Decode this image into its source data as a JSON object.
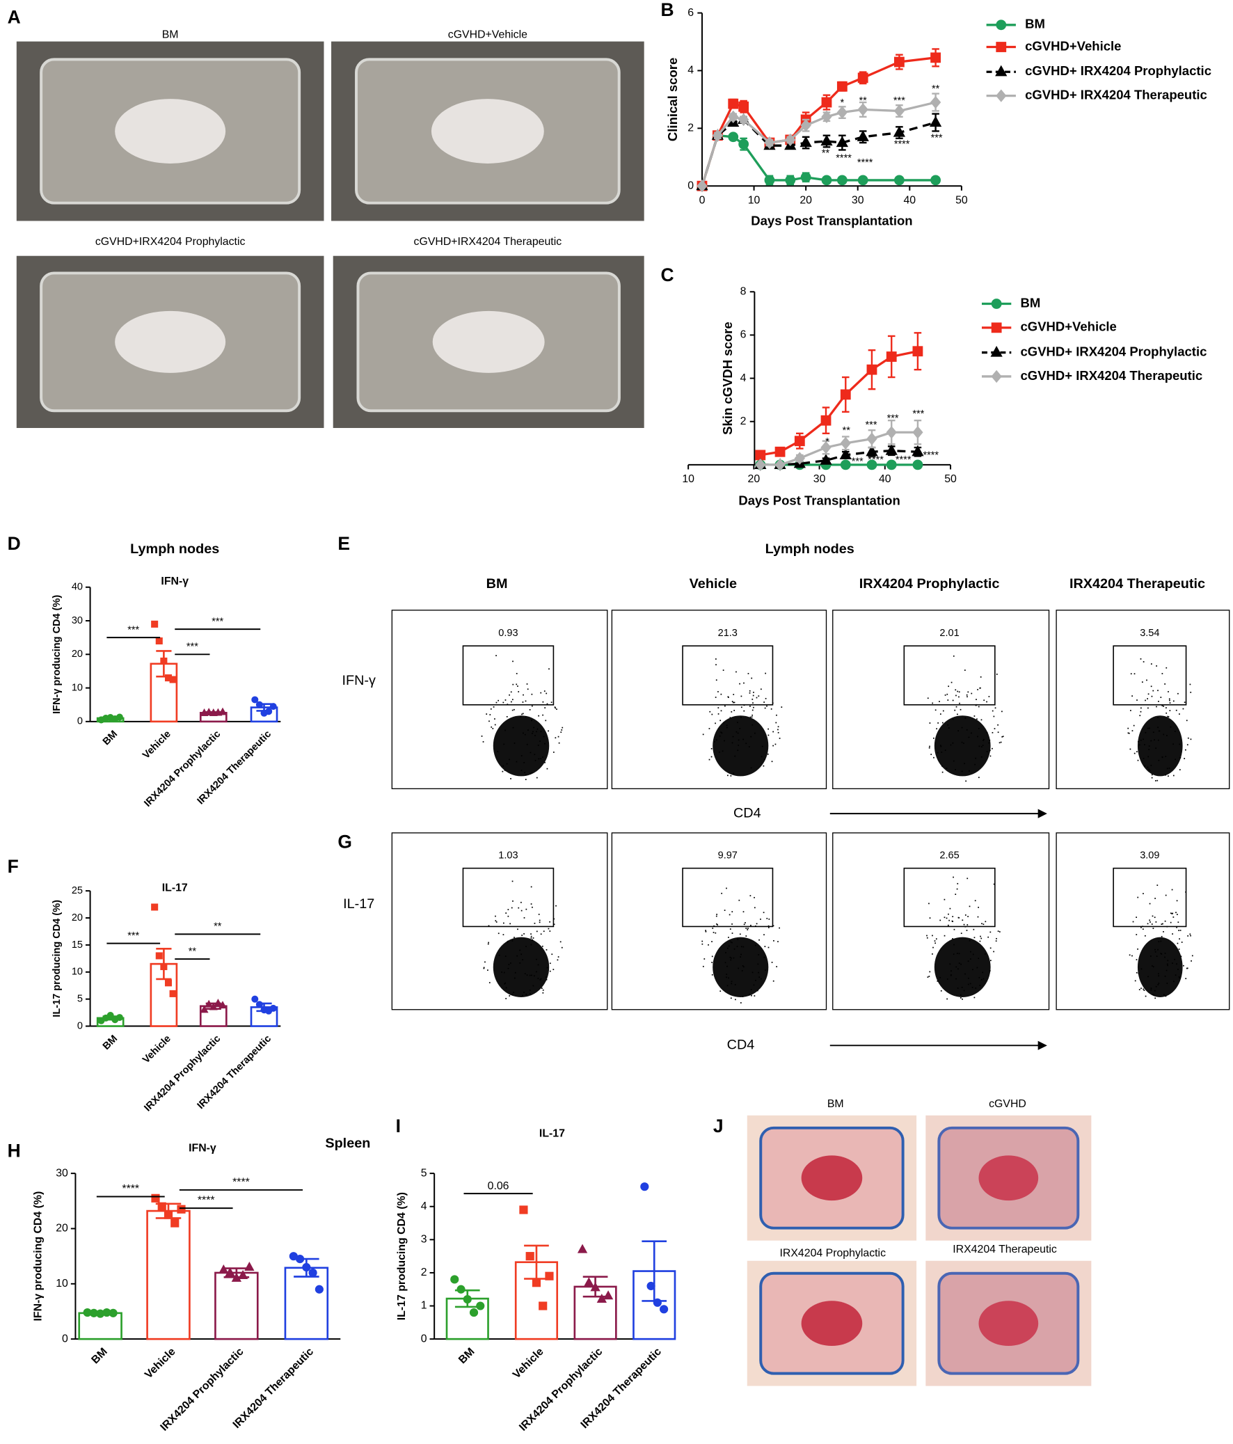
{
  "panels": {
    "photos_a": {
      "letter": "A",
      "captions": [
        "BM",
        "cGVHD+Vehicle",
        "cGVHD+IRX4204 Prophylactic",
        "cGVHD+IRX4204 Therapeutic"
      ]
    },
    "histology_j": {
      "letter": "J",
      "captions": [
        "BM",
        "cGVHD",
        "IRX4204 Prophylactic",
        "IRX4204 Therapeutic"
      ]
    },
    "flow": {
      "title": "Lymph nodes",
      "columns": [
        "BM",
        "Vehicle",
        "IRX4204 Prophylactic",
        "IRX4204 Therapeutic"
      ],
      "x_label": "CD4",
      "rows": [
        {
          "letter": "E",
          "label": "IFN-γ",
          "gates": [
            0.93,
            21.3,
            2.01,
            3.54
          ]
        },
        {
          "letter": "G",
          "label": "IL-17",
          "gates": [
            1.03,
            9.97,
            2.65,
            3.09
          ]
        }
      ]
    }
  },
  "chart_data": [
    {
      "type": "line",
      "panel": "B",
      "y_label": "Clinical score",
      "x_label": "Days Post Transplantation",
      "x": [
        0,
        3,
        6,
        8,
        13,
        17,
        20,
        24,
        27,
        31,
        38,
        45
      ],
      "xlim": [
        0,
        50
      ],
      "xticks": [
        0,
        10,
        20,
        30,
        40,
        50
      ],
      "ylim": [
        0,
        6
      ],
      "yticks": [
        0,
        2,
        4,
        6
      ],
      "legend": "right",
      "series": [
        {
          "name": "BM",
          "color": "#1e9e5a",
          "marker": "circle",
          "line_style": "solid",
          "values": [
            0,
            1.75,
            1.7,
            1.45,
            0.2,
            0.2,
            0.3,
            0.2,
            0.2,
            0.2,
            0.2,
            0.2
          ],
          "errors": [
            0,
            0.1,
            0.05,
            0.2,
            0.15,
            0.15,
            0.15,
            0.05,
            0.05,
            0.05,
            0.05,
            0.05
          ]
        },
        {
          "name": "cGVHD+Vehicle",
          "color": "#ee2a1b",
          "marker": "square",
          "line_style": "solid",
          "values": [
            0,
            1.75,
            2.85,
            2.75,
            1.5,
            1.6,
            2.3,
            2.9,
            3.45,
            3.75,
            4.3,
            4.45
          ],
          "errors": [
            0,
            0.1,
            0.15,
            0.2,
            0.1,
            0.15,
            0.25,
            0.25,
            0.15,
            0.2,
            0.25,
            0.3
          ]
        },
        {
          "name": "cGVHD+ IRX4204 Prophylactic",
          "color": "#000000",
          "marker": "triangle",
          "line_style": "dashed",
          "values": [
            0,
            1.75,
            2.2,
            2.3,
            1.4,
            1.4,
            1.5,
            1.55,
            1.5,
            1.7,
            1.85,
            2.2
          ],
          "errors": [
            0,
            0.1,
            0.1,
            0.1,
            0.1,
            0.1,
            0.2,
            0.2,
            0.25,
            0.2,
            0.2,
            0.3
          ]
        },
        {
          "name": "cGVHD+ IRX4204 Therapeutic",
          "color": "#b0b0b0",
          "marker": "diamond",
          "line_style": "solid",
          "values": [
            0,
            1.75,
            2.4,
            2.3,
            1.5,
            1.6,
            2.1,
            2.4,
            2.55,
            2.65,
            2.6,
            2.9
          ],
          "errors": [
            0,
            0.1,
            0.1,
            0.1,
            0.1,
            0.1,
            0.2,
            0.15,
            0.2,
            0.25,
            0.2,
            0.3
          ]
        }
      ],
      "annotations": [
        {
          "text": "*",
          "x": 27,
          "y": 2.87
        },
        {
          "text": "**",
          "x": 31,
          "y": 2.94
        },
        {
          "text": "***",
          "x": 38,
          "y": 2.94
        },
        {
          "text": "**",
          "x": 45,
          "y": 3.35
        },
        {
          "text": "**",
          "x": 23.8,
          "y": 1.12
        },
        {
          "text": "****",
          "x": 27.3,
          "y": 0.96
        },
        {
          "text": "****",
          "x": 31.4,
          "y": 0.8
        },
        {
          "text": "****",
          "x": 38.5,
          "y": 1.44
        },
        {
          "text": "***",
          "x": 45.2,
          "y": 1.66
        }
      ]
    },
    {
      "type": "line",
      "panel": "C",
      "y_label": "Skin cGVDH score",
      "x_label": "Days Post Transplantation",
      "x": [
        21,
        24,
        27,
        31,
        34,
        38,
        41,
        45
      ],
      "xlim": [
        10,
        50
      ],
      "xticks": [
        10,
        20,
        30,
        40,
        50
      ],
      "ylim": [
        0,
        8
      ],
      "yticks": [
        2,
        4,
        6,
        8
      ],
      "legend": "right",
      "series": [
        {
          "name": "BM",
          "color": "#1e9e5a",
          "marker": "circle",
          "line_style": "solid",
          "values": [
            0,
            0,
            0,
            0,
            0,
            0,
            0,
            0
          ],
          "errors": [
            0,
            0,
            0,
            0,
            0,
            0,
            0,
            0
          ]
        },
        {
          "name": "cGVHD+Vehicle",
          "color": "#ee2a1b",
          "marker": "square",
          "line_style": "solid",
          "values": [
            0.45,
            0.6,
            1.1,
            2.05,
            3.25,
            4.4,
            5.0,
            5.25
          ],
          "errors": [
            0.1,
            0.15,
            0.35,
            0.6,
            0.8,
            0.9,
            0.95,
            0.85
          ]
        },
        {
          "name": "cGVHD+ IRX4204 Prophylactic",
          "color": "#000000",
          "marker": "triangle",
          "line_style": "dashed",
          "values": [
            0,
            0,
            0.05,
            0.2,
            0.45,
            0.6,
            0.65,
            0.6
          ],
          "errors": [
            0,
            0,
            0.05,
            0.1,
            0.15,
            0.2,
            0.2,
            0.2
          ]
        },
        {
          "name": "cGVHD+ IRX4204 Therapeutic",
          "color": "#b0b0b0",
          "marker": "diamond",
          "line_style": "solid",
          "values": [
            0,
            0,
            0.3,
            0.8,
            1.0,
            1.2,
            1.5,
            1.5
          ],
          "errors": [
            0,
            0,
            0.15,
            0.3,
            0.3,
            0.4,
            0.55,
            0.55
          ]
        }
      ],
      "annotations": [
        {
          "text": "*",
          "x": 31.2,
          "y": 1.06
        },
        {
          "text": "**",
          "x": 34.1,
          "y": 1.57
        },
        {
          "text": "***",
          "x": 37.9,
          "y": 1.83
        },
        {
          "text": "***",
          "x": 41.2,
          "y": 2.13
        },
        {
          "text": "***",
          "x": 45.1,
          "y": 2.34
        },
        {
          "text": "***",
          "x": 35.8,
          "y": 0.13
        },
        {
          "text": "****",
          "x": 38.6,
          "y": 0.21
        },
        {
          "text": "****",
          "x": 42.8,
          "y": 0.21
        },
        {
          "text": "****",
          "x": 47.0,
          "y": 0.43
        }
      ]
    },
    {
      "type": "bar",
      "panel": "D",
      "header": "Lymph nodes",
      "title": "IFN-γ",
      "y_label": "IFN-γ producing CD4 (%)",
      "categories": [
        "BM",
        "Vehicle",
        "IRX4204 Prophylactic",
        "IRX4204 Therapeutic"
      ],
      "colors": [
        "#2ca02c",
        "#f03c23",
        "#8b1a4a",
        "#2040e0"
      ],
      "markers": [
        "circle",
        "square",
        "triangle",
        "circle"
      ],
      "values": [
        1.0,
        17.2,
        2.6,
        4.2
      ],
      "errors": [
        0.3,
        3.8,
        0.2,
        1.0
      ],
      "points": [
        [
          0.5,
          1.0,
          1.2,
          0.8,
          1.3
        ],
        [
          29,
          24,
          18,
          13,
          12.5
        ],
        [
          2.5,
          2.7,
          2.5,
          2.6,
          2.8
        ],
        [
          6.5,
          5,
          2.5,
          3,
          4.5
        ]
      ],
      "ylim": [
        0,
        40
      ],
      "yticks": [
        0,
        10,
        20,
        30,
        40
      ],
      "annotations": [
        {
          "text": "***",
          "from": "BM",
          "to": "Vehicle",
          "y": 25
        },
        {
          "text": "***",
          "from": "Vehicle",
          "to": "IRX4204 Therapeutic",
          "y": 27.5
        },
        {
          "text": "***",
          "from": "Vehicle",
          "to": "IRX4204 Prophylactic",
          "y": 20
        }
      ]
    },
    {
      "type": "bar",
      "panel": "F",
      "title": "IL-17",
      "y_label": "IL-17 producing CD4 (%)",
      "categories": [
        "BM",
        "Vehicle",
        "IRX4204 Prophylactic",
        "IRX4204 Therapeutic"
      ],
      "colors": [
        "#2ca02c",
        "#f03c23",
        "#8b1a4a",
        "#2040e0"
      ],
      "markers": [
        "circle",
        "square",
        "triangle",
        "circle"
      ],
      "values": [
        1.5,
        11.5,
        3.7,
        3.5
      ],
      "errors": [
        0.3,
        2.8,
        0.5,
        0.7
      ],
      "points": [
        [
          1.0,
          1.5,
          2.0,
          1.2,
          1.6
        ],
        [
          22,
          13,
          11,
          8,
          6
        ],
        [
          3.0,
          4.0,
          3.5,
          4.2,
          3.8
        ],
        [
          5.0,
          4.0,
          3.0,
          2.8,
          3.3
        ]
      ],
      "ylim": [
        0,
        25
      ],
      "yticks": [
        0,
        5,
        10,
        15,
        20,
        25
      ],
      "annotations": [
        {
          "text": "***",
          "from": "BM",
          "to": "Vehicle",
          "y": 15.3
        },
        {
          "text": "**",
          "from": "Vehicle",
          "to": "IRX4204 Therapeutic",
          "y": 17
        },
        {
          "text": "**",
          "from": "Vehicle",
          "to": "IRX4204 Prophylactic",
          "y": 12.4
        }
      ]
    },
    {
      "type": "bar",
      "panel": "H",
      "header": "Spleen",
      "title": "IFN-γ",
      "y_label": "IFN-γ producing CD4 (%)",
      "categories": [
        "BM",
        "Vehicle",
        "IRX4204 Prophylactic",
        "IRX4204 Therapeutic"
      ],
      "colors": [
        "#2ca02c",
        "#f03c23",
        "#8b1a4a",
        "#2040e0"
      ],
      "markers": [
        "circle",
        "square",
        "triangle",
        "circle"
      ],
      "values": [
        4.7,
        23.2,
        12.0,
        12.9
      ],
      "errors": [
        0.2,
        1.3,
        0.8,
        1.6
      ],
      "points": [
        [
          4.8,
          4.7,
          4.6,
          4.8,
          4.7
        ],
        [
          25.5,
          24,
          22.5,
          21,
          23.5
        ],
        [
          12.5,
          12,
          11,
          11.5,
          13
        ],
        [
          15,
          14.5,
          13,
          12,
          9
        ]
      ],
      "ylim": [
        0,
        30
      ],
      "yticks": [
        0,
        10,
        20,
        30
      ],
      "annotations": [
        {
          "text": "****",
          "from": "BM",
          "to": "Vehicle",
          "y": 25.8
        },
        {
          "text": "****",
          "from": "Vehicle",
          "to": "IRX4204 Therapeutic",
          "y": 27
        },
        {
          "text": "****",
          "from": "Vehicle",
          "to": "IRX4204 Prophylactic",
          "y": 23.7
        }
      ]
    },
    {
      "type": "bar",
      "panel": "I",
      "title": "IL-17",
      "y_label": "IL-17 producing CD4 (%)",
      "categories": [
        "BM",
        "Vehicle",
        "IRX4204 Prophylactic",
        "IRX4204 Therapeutic"
      ],
      "colors": [
        "#2ca02c",
        "#f03c23",
        "#8b1a4a",
        "#2040e0"
      ],
      "markers": [
        "circle",
        "square",
        "triangle",
        "circle"
      ],
      "values": [
        1.22,
        2.32,
        1.58,
        2.05
      ],
      "errors": [
        0.25,
        0.5,
        0.3,
        0.9
      ],
      "points": [
        [
          1.8,
          1.5,
          1.2,
          0.8,
          1.0
        ],
        [
          3.9,
          2.5,
          1.7,
          1.0,
          1.9
        ],
        [
          2.7,
          1.7,
          1.55,
          1.2,
          1.3
        ],
        [
          4.6,
          1.6,
          1.1,
          0.9
        ]
      ],
      "ylim": [
        0,
        5
      ],
      "yticks": [
        0,
        1,
        2,
        3,
        4,
        5
      ],
      "annotations": [
        {
          "text": "0.06",
          "from": "BM",
          "to": "Vehicle",
          "y": 4.39
        }
      ]
    }
  ]
}
